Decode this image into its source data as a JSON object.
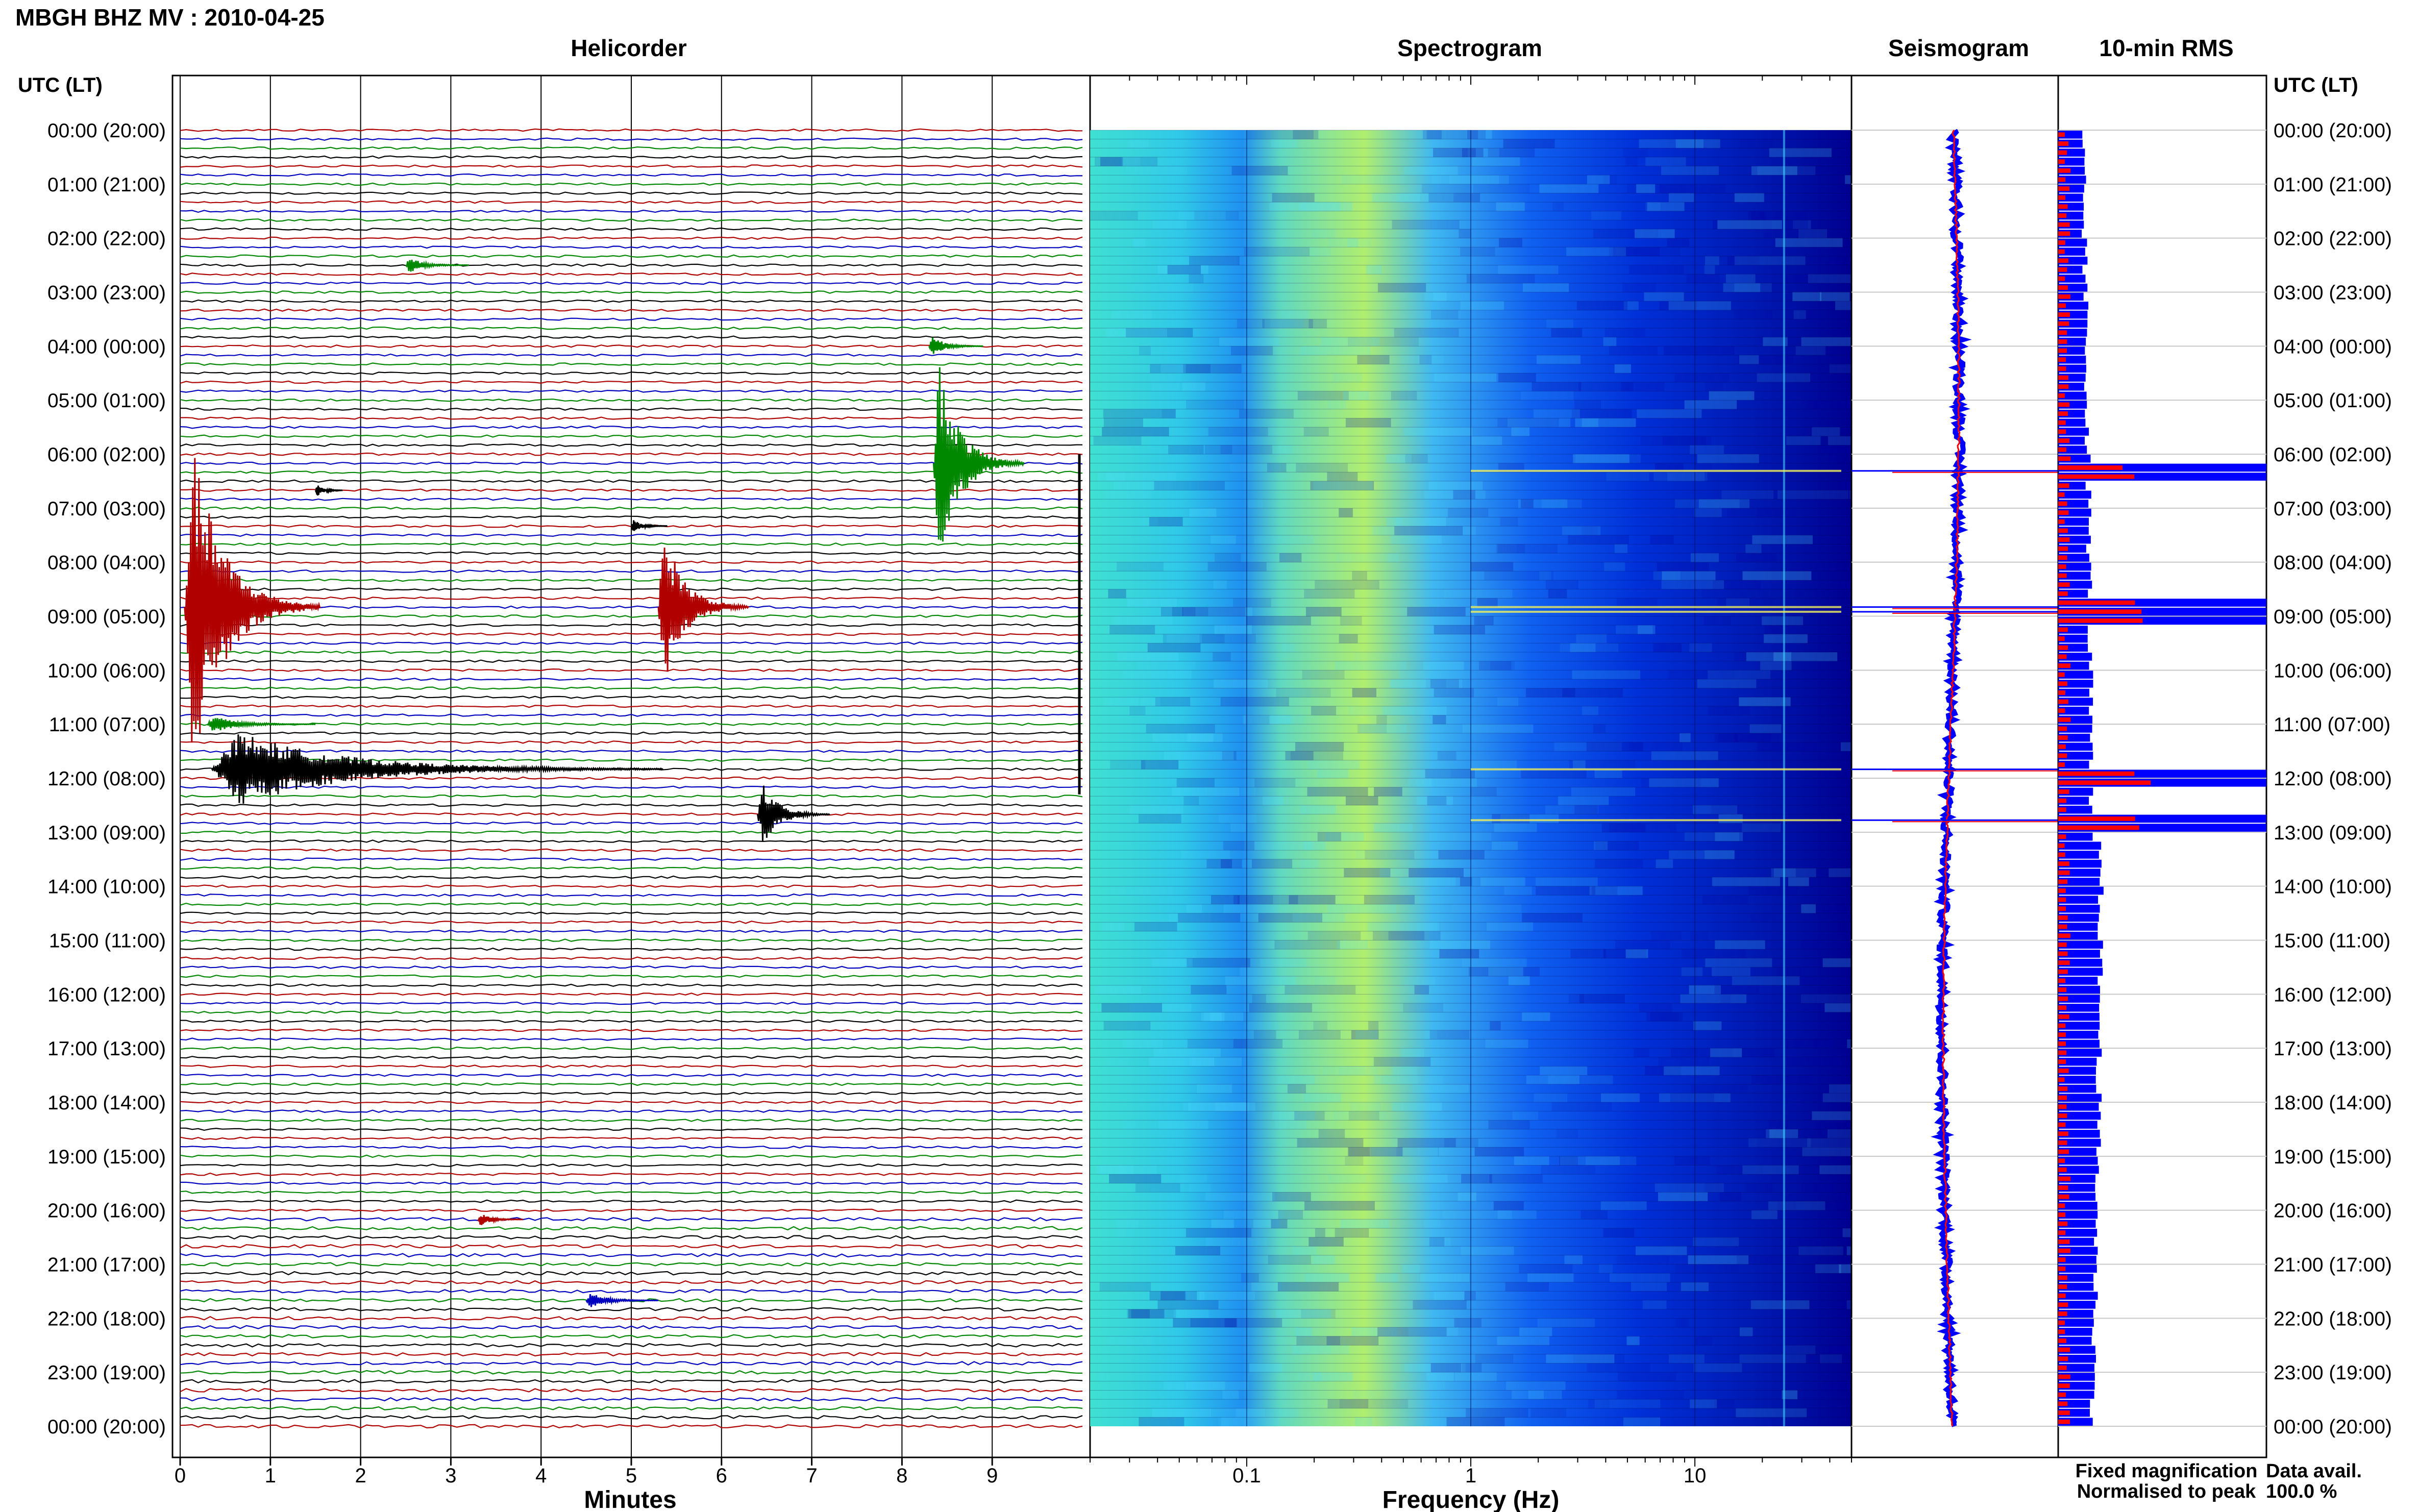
{
  "header": {
    "title": "MBGH BHZ MV : 2010-04-25"
  },
  "time_axis": {
    "label_left": "UTC (LT)",
    "label_right": "UTC (LT)",
    "ticks": [
      "00:00 (20:00)",
      "01:00 (21:00)",
      "02:00 (22:00)",
      "03:00 (23:00)",
      "04:00 (00:00)",
      "05:00 (01:00)",
      "06:00 (02:00)",
      "07:00 (03:00)",
      "08:00 (04:00)",
      "09:00 (05:00)",
      "10:00 (06:00)",
      "11:00 (07:00)",
      "12:00 (08:00)",
      "13:00 (09:00)",
      "14:00 (10:00)",
      "15:00 (11:00)",
      "16:00 (12:00)",
      "17:00 (13:00)",
      "18:00 (14:00)",
      "19:00 (15:00)",
      "20:00 (16:00)",
      "21:00 (17:00)",
      "22:00 (18:00)",
      "23:00 (19:00)",
      "00:00 (20:00)"
    ]
  },
  "chart_data": [
    {
      "type": "line",
      "title": "Helicorder",
      "xlabel": "Minutes",
      "x_ticks": [
        "0",
        "1",
        "2",
        "3",
        "4",
        "5",
        "6",
        "7",
        "8",
        "9"
      ],
      "xlim": [
        0,
        10
      ],
      "ylim_hours": [
        0,
        24
      ],
      "traces_per_hour": 6,
      "trace_colors": [
        "#b00000",
        "#0000c0",
        "#008800",
        "#000000"
      ],
      "events": [
        {
          "hour": 2.5,
          "minute": 2.5,
          "amplitude": 0.15,
          "duration": 0.7,
          "color": "#008800"
        },
        {
          "hour": 4.0,
          "minute": 8.3,
          "amplitude": 0.2,
          "duration": 0.6,
          "color": "#008800"
        },
        {
          "hour": 6.17,
          "minute": 8.35,
          "amplitude": 1.9,
          "duration": 1.0,
          "color": "#008800"
        },
        {
          "hour": 6.67,
          "minute": 1.5,
          "amplitude": 0.12,
          "duration": 0.3,
          "color": "#000000"
        },
        {
          "hour": 7.33,
          "minute": 5.0,
          "amplitude": 0.12,
          "duration": 0.4,
          "color": "#000000"
        },
        {
          "hour": 8.83,
          "minute": 0.05,
          "amplitude": 3.0,
          "duration": 1.5,
          "color": "#b00000"
        },
        {
          "hour": 8.83,
          "minute": 5.3,
          "amplitude": 1.5,
          "duration": 1.0,
          "color": "#b00000"
        },
        {
          "hour": 11.0,
          "minute": 0.3,
          "amplitude": 0.15,
          "duration": 1.2,
          "color": "#008800"
        },
        {
          "hour": 11.83,
          "minute": 0.35,
          "amplitude": 0.7,
          "duration": 5.0,
          "color": "#000000"
        },
        {
          "hour": 12.67,
          "minute": 6.4,
          "amplitude": 0.6,
          "duration": 0.8,
          "color": "#000000"
        },
        {
          "hour": 20.17,
          "minute": 3.3,
          "amplitude": 0.12,
          "duration": 0.5,
          "color": "#b00000"
        },
        {
          "hour": 21.67,
          "minute": 4.5,
          "amplitude": 0.15,
          "duration": 0.8,
          "color": "#0000c0"
        }
      ]
    },
    {
      "type": "heatmap",
      "title": "Spectrogram",
      "xlabel": "Frequency (Hz)",
      "x_scale": "log",
      "x_ticks": [
        "0.1",
        "1",
        "10"
      ],
      "xlim": [
        0.02,
        50
      ],
      "colormap": [
        "#00007a",
        "#0000d0",
        "#0050ff",
        "#00b0ff",
        "#40e0e0",
        "#a0f080",
        "#f0f000"
      ]
    },
    {
      "type": "line",
      "title": "Seismogram",
      "series": [
        {
          "name": "Fixed magnification",
          "color": "#0000ff"
        },
        {
          "name": "Normalised to peak",
          "color": "#ff0000"
        }
      ]
    },
    {
      "type": "bar",
      "title": "10-min RMS",
      "orientation": "horizontal",
      "series": [
        {
          "name": "Fixed magnification",
          "color": "#0000ff"
        },
        {
          "name": "Normalised to peak",
          "color": "#ff0000"
        }
      ]
    }
  ],
  "legend": {
    "fixed": "Fixed magnification",
    "normalised": "Normalised to peak",
    "fixed_color": "#0000ff",
    "normalised_color": "#ff0000"
  },
  "availability": {
    "label": "Data avail.",
    "value": "100.0 %"
  }
}
